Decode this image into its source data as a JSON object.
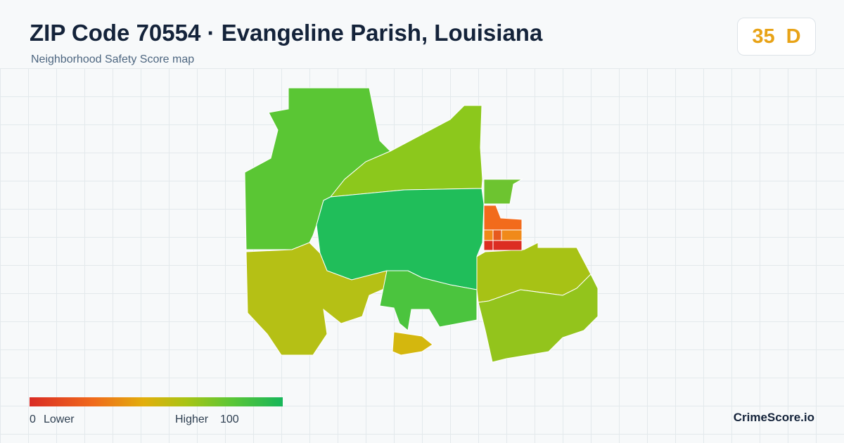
{
  "header": {
    "title": "ZIP Code 70554 · Evangeline Parish, Louisiana",
    "subtitle": "Neighborhood Safety Score map"
  },
  "badge": {
    "score": 35,
    "grade": "D"
  },
  "legend": {
    "min": 0,
    "min_label": "Lower",
    "max_label": "Higher",
    "max": 100
  },
  "footer": {
    "brand": "CrimeScore.io"
  }
}
